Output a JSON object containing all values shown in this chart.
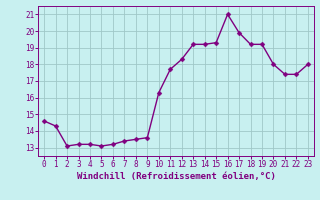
{
  "hours": [
    0,
    1,
    2,
    3,
    4,
    5,
    6,
    7,
    8,
    9,
    10,
    11,
    12,
    13,
    14,
    15,
    16,
    17,
    18,
    19,
    20,
    21,
    22,
    23
  ],
  "values": [
    14.6,
    14.3,
    13.1,
    13.2,
    13.2,
    13.1,
    13.2,
    13.4,
    13.5,
    13.6,
    16.3,
    17.7,
    18.3,
    19.2,
    19.2,
    19.3,
    21.0,
    19.9,
    19.2,
    19.2,
    18.0,
    17.4,
    17.4,
    18.0
  ],
  "line_color": "#800080",
  "marker_color": "#800080",
  "bg_color": "#c8f0f0",
  "grid_color": "#a0c8c8",
  "xlabel": "Windchill (Refroidissement éolien,°C)",
  "ylim": [
    12.5,
    21.5
  ],
  "yticks": [
    13,
    14,
    15,
    16,
    17,
    18,
    19,
    20,
    21
  ],
  "xlim": [
    -0.5,
    23.5
  ],
  "xticks": [
    0,
    1,
    2,
    3,
    4,
    5,
    6,
    7,
    8,
    9,
    10,
    11,
    12,
    13,
    14,
    15,
    16,
    17,
    18,
    19,
    20,
    21,
    22,
    23
  ],
  "tick_label_fontsize": 5.5,
  "xlabel_fontsize": 6.5,
  "line_width": 1.0,
  "marker_size": 2.5
}
